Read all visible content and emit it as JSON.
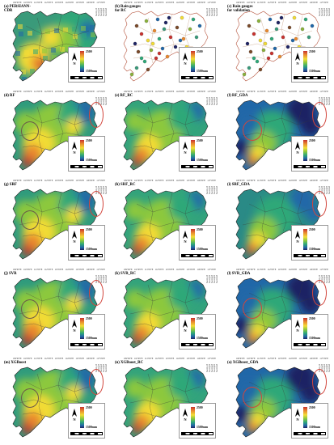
{
  "colors": {
    "high": "#c7322f",
    "mid": "#f2dc36",
    "low": "#1f2463",
    "circle_gray": "#6b5a4a",
    "circle_red": "#d2453c"
  },
  "common": {
    "legend_max": "2500",
    "legend_min": "1500mm",
    "north": "N",
    "scale_text": "0 25 50   100 150 200",
    "lon_ticks": [
      "109°0'0\"E",
      "110°0'0\"E",
      "111°0'0\"E",
      "112°0'0\"E",
      "113°0'0\"E",
      "114°0'0\"E",
      "115°0'0\"E",
      "116°0'0\"E",
      "117°0'0\"E"
    ],
    "lat_ticks": [
      "25°0'0\"N",
      "24°0'0\"N",
      "23°0'0\"N",
      "22°0'0\"N",
      "21°0'0\"N"
    ]
  },
  "panels": [
    {
      "label": "(a) PERSIANN-\nCDR",
      "style": "persiann"
    },
    {
      "label": "(b) Rain gauges\n     for RC",
      "style": "gauges"
    },
    {
      "label": "(c) Rain gauges\n     for validation",
      "style": "gauges"
    },
    {
      "label": "(d) RF",
      "style": "wet",
      "gray_circle": true,
      "red_oval": true
    },
    {
      "label": "(e) RF_RC",
      "style": "wetter"
    },
    {
      "label": "(f) RF_GDA",
      "style": "dry",
      "red_circle_left": true,
      "red_oval": true
    },
    {
      "label": "(g) SRF",
      "style": "wet",
      "gray_circle": true,
      "red_oval": true
    },
    {
      "label": "(h) SRF_RC",
      "style": "wetter"
    },
    {
      "label": "(i) SRF_GDA",
      "style": "medium",
      "red_oval": true
    },
    {
      "label": "(j) SVR",
      "style": "wet",
      "gray_circle": true,
      "red_oval": true
    },
    {
      "label": "(k) SVR_RC",
      "style": "wetter"
    },
    {
      "label": "(l) SVR_GDA",
      "style": "dry",
      "red_circle_left": true,
      "red_oval": true
    },
    {
      "label": "(m) XGBoost",
      "style": "wet",
      "gray_circle": true,
      "red_oval": true
    },
    {
      "label": "(n) XGBoost_RC",
      "style": "wetter"
    },
    {
      "label": "(o) XGBoost_GDA",
      "style": "dry",
      "red_circle_left": true,
      "red_oval": true
    }
  ]
}
